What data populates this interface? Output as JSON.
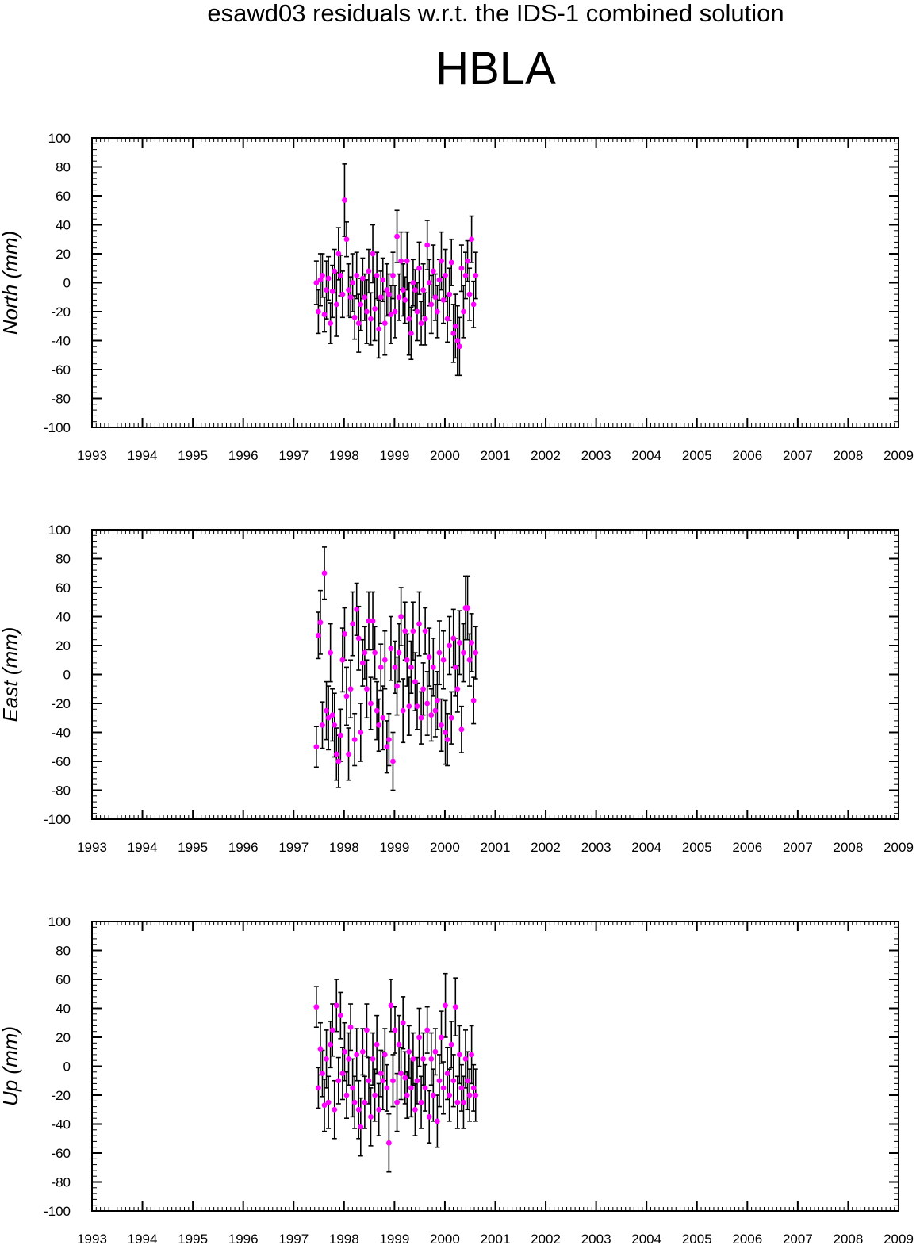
{
  "header": {
    "title": "esawd03 residuals w.r.t. the IDS-1 combined solution",
    "station": "HBLA"
  },
  "colors": {
    "marker": "#ff00ff",
    "errorbar": "#000000",
    "axis": "#000000"
  },
  "chart_data": [
    {
      "type": "scatter",
      "ylabel": "North (mm)",
      "xlim": [
        1993,
        2009
      ],
      "ylim": [
        -100,
        100
      ],
      "xticks": [
        "1993",
        "1994",
        "1995",
        "1996",
        "1997",
        "1998",
        "1999",
        "2000",
        "2001",
        "2002",
        "2003",
        "2004",
        "2005",
        "2006",
        "2007",
        "2008",
        "2009"
      ],
      "yticks": [
        "100",
        "80",
        "60",
        "40",
        "20",
        "0",
        "-20",
        "-40",
        "-60",
        "-80",
        "-100"
      ],
      "x": [
        1997.45,
        1997.49,
        1997.53,
        1997.57,
        1997.61,
        1997.65,
        1997.69,
        1997.73,
        1997.77,
        1997.81,
        1997.85,
        1997.89,
        1997.93,
        1997.97,
        1998.01,
        1998.05,
        1998.09,
        1998.13,
        1998.17,
        1998.21,
        1998.25,
        1998.29,
        1998.33,
        1998.37,
        1998.41,
        1998.45,
        1998.49,
        1998.53,
        1998.57,
        1998.61,
        1998.65,
        1998.69,
        1998.73,
        1998.77,
        1998.81,
        1998.85,
        1998.89,
        1998.93,
        1998.97,
        1999.01,
        1999.05,
        1999.09,
        1999.13,
        1999.17,
        1999.21,
        1999.25,
        1999.29,
        1999.33,
        1999.37,
        1999.41,
        1999.45,
        1999.49,
        1999.53,
        1999.57,
        1999.61,
        1999.65,
        1999.69,
        1999.73,
        1999.77,
        1999.81,
        1999.85,
        1999.89,
        1999.93,
        1999.97,
        2000.01,
        2000.05,
        2000.09,
        2000.13,
        2000.17,
        2000.21,
        2000.25,
        2000.29,
        2000.33,
        2000.37,
        2000.41,
        2000.45,
        2000.49,
        2000.53,
        2000.57,
        2000.61
      ],
      "y": [
        0,
        -20,
        2,
        5,
        -22,
        -5,
        3,
        -28,
        -6,
        8,
        -15,
        20,
        5,
        -8,
        57,
        30,
        -5,
        -10,
        0,
        -24,
        5,
        -28,
        -15,
        3,
        -10,
        -20,
        8,
        -25,
        20,
        -18,
        5,
        -32,
        -10,
        2,
        -28,
        -5,
        -8,
        -22,
        5,
        -20,
        32,
        -10,
        15,
        -5,
        -12,
        15,
        -25,
        -35,
        0,
        -5,
        -20,
        10,
        -28,
        -5,
        -25,
        26,
        0,
        -15,
        8,
        -10,
        -20,
        2,
        15,
        -12,
        5,
        -25,
        -8,
        14,
        -35,
        -30,
        -40,
        -44,
        10,
        -20,
        5,
        15,
        -8,
        30,
        -15,
        5
      ],
      "err": [
        15,
        15,
        18,
        15,
        12,
        20,
        15,
        14,
        18,
        15,
        22,
        18,
        14,
        16,
        25,
        12,
        18,
        14,
        20,
        15,
        16,
        20,
        18,
        14,
        16,
        22,
        15,
        18,
        20,
        22,
        16,
        20,
        18,
        15,
        22,
        18,
        14,
        20,
        16,
        18,
        18,
        16,
        20,
        18,
        16,
        20,
        25,
        18,
        16,
        14,
        20,
        18,
        15,
        18,
        18,
        17,
        16,
        20,
        18,
        16,
        18,
        14,
        20,
        16,
        18,
        16,
        18,
        16,
        20,
        22,
        24,
        20,
        16,
        18,
        16,
        14,
        18,
        16,
        16,
        16
      ]
    },
    {
      "type": "scatter",
      "ylabel": "East (mm)",
      "xlim": [
        1993,
        2009
      ],
      "ylim": [
        -100,
        100
      ],
      "xticks": [
        "1993",
        "1994",
        "1995",
        "1996",
        "1997",
        "1998",
        "1999",
        "2000",
        "2001",
        "2002",
        "2003",
        "2004",
        "2005",
        "2006",
        "2007",
        "2008",
        "2009"
      ],
      "yticks": [
        "100",
        "80",
        "60",
        "40",
        "20",
        "0",
        "-20",
        "-40",
        "-60",
        "-80",
        "-100"
      ],
      "x": [
        1997.45,
        1997.49,
        1997.53,
        1997.57,
        1997.61,
        1997.65,
        1997.69,
        1997.73,
        1997.77,
        1997.81,
        1997.85,
        1997.89,
        1997.93,
        1997.97,
        1998.01,
        1998.05,
        1998.09,
        1998.13,
        1998.17,
        1998.21,
        1998.25,
        1998.29,
        1998.33,
        1998.37,
        1998.41,
        1998.45,
        1998.49,
        1998.53,
        1998.57,
        1998.61,
        1998.65,
        1998.69,
        1998.73,
        1998.77,
        1998.81,
        1998.85,
        1998.89,
        1998.93,
        1998.97,
        1999.01,
        1999.05,
        1999.09,
        1999.13,
        1999.17,
        1999.21,
        1999.25,
        1999.29,
        1999.33,
        1999.37,
        1999.41,
        1999.45,
        1999.49,
        1999.53,
        1999.57,
        1999.61,
        1999.65,
        1999.69,
        1999.73,
        1999.77,
        1999.81,
        1999.85,
        1999.89,
        1999.93,
        1999.97,
        2000.01,
        2000.05,
        2000.09,
        2000.13,
        2000.17,
        2000.21,
        2000.25,
        2000.29,
        2000.33,
        2000.37,
        2000.41,
        2000.45,
        2000.49,
        2000.53,
        2000.57,
        2000.61
      ],
      "y": [
        -50,
        27,
        36,
        -35,
        70,
        -25,
        -30,
        15,
        -28,
        -35,
        -55,
        -60,
        -42,
        10,
        28,
        -15,
        -55,
        -10,
        35,
        -45,
        45,
        25,
        -40,
        8,
        15,
        -10,
        37,
        -20,
        37,
        15,
        -25,
        -35,
        5,
        -30,
        10,
        -50,
        -45,
        18,
        -60,
        5,
        -8,
        15,
        40,
        -25,
        30,
        10,
        -22,
        5,
        30,
        -5,
        -22,
        35,
        -30,
        -10,
        30,
        -20,
        12,
        -28,
        5,
        -25,
        -18,
        15,
        -35,
        10,
        -40,
        -45,
        20,
        -30,
        25,
        5,
        -10,
        22,
        -38,
        15,
        46,
        46,
        10,
        22,
        -18,
        15
      ],
      "err": [
        14,
        16,
        22,
        16,
        18,
        20,
        22,
        20,
        18,
        22,
        18,
        18,
        18,
        22,
        18,
        20,
        18,
        20,
        22,
        18,
        18,
        22,
        20,
        16,
        18,
        20,
        20,
        18,
        20,
        18,
        20,
        18,
        16,
        22,
        20,
        18,
        18,
        22,
        20,
        18,
        20,
        20,
        20,
        22,
        20,
        18,
        20,
        18,
        20,
        20,
        16,
        22,
        18,
        18,
        16,
        22,
        20,
        18,
        20,
        18,
        20,
        22,
        18,
        20,
        22,
        18,
        20,
        18,
        20,
        20,
        16,
        22,
        16,
        20,
        22,
        22,
        18,
        20,
        16,
        18
      ]
    },
    {
      "type": "scatter",
      "ylabel": "Up (mm)",
      "xlim": [
        1993,
        2009
      ],
      "ylim": [
        -100,
        100
      ],
      "xticks": [
        "1993",
        "1994",
        "1995",
        "1996",
        "1997",
        "1998",
        "1999",
        "2000",
        "2001",
        "2002",
        "2003",
        "2004",
        "2005",
        "2006",
        "2007",
        "2008",
        "2009"
      ],
      "yticks": [
        "100",
        "80",
        "60",
        "40",
        "20",
        "0",
        "-20",
        "-40",
        "-60",
        "-80",
        "-100"
      ],
      "x": [
        1997.45,
        1997.49,
        1997.53,
        1997.57,
        1997.61,
        1997.65,
        1997.69,
        1997.73,
        1997.77,
        1997.81,
        1997.85,
        1997.89,
        1997.93,
        1997.97,
        1998.01,
        1998.05,
        1998.09,
        1998.13,
        1998.17,
        1998.21,
        1998.25,
        1998.29,
        1998.33,
        1998.37,
        1998.41,
        1998.45,
        1998.49,
        1998.53,
        1998.57,
        1998.61,
        1998.65,
        1998.69,
        1998.73,
        1998.77,
        1998.81,
        1998.85,
        1998.89,
        1998.93,
        1998.97,
        1999.01,
        1999.05,
        1999.09,
        1999.13,
        1999.17,
        1999.21,
        1999.25,
        1999.29,
        1999.33,
        1999.37,
        1999.41,
        1999.45,
        1999.49,
        1999.53,
        1999.57,
        1999.61,
        1999.65,
        1999.69,
        1999.73,
        1999.77,
        1999.81,
        1999.85,
        1999.89,
        1999.93,
        1999.97,
        2000.01,
        2000.05,
        2000.09,
        2000.13,
        2000.17,
        2000.21,
        2000.25,
        2000.29,
        2000.33,
        2000.37,
        2000.41,
        2000.45,
        2000.49,
        2000.53,
        2000.57,
        2000.61
      ],
      "y": [
        41,
        -15,
        12,
        -5,
        -27,
        5,
        -25,
        15,
        25,
        -30,
        42,
        -10,
        35,
        -5,
        10,
        -20,
        5,
        27,
        -15,
        -25,
        8,
        -30,
        -42,
        10,
        -25,
        25,
        -10,
        -35,
        5,
        -20,
        15,
        -30,
        -5,
        -10,
        8,
        -15,
        -53,
        42,
        -10,
        25,
        -25,
        15,
        -5,
        30,
        -8,
        -20,
        10,
        -15,
        5,
        -30,
        -10,
        20,
        -25,
        5,
        -15,
        25,
        -35,
        5,
        -20,
        10,
        -38,
        -10,
        20,
        -15,
        42,
        -5,
        -20,
        15,
        -10,
        41,
        -25,
        8,
        -15,
        -25,
        5,
        -10,
        -20,
        8,
        -15,
        -20
      ],
      "err": [
        14,
        14,
        18,
        16,
        18,
        20,
        18,
        16,
        18,
        20,
        18,
        16,
        16,
        18,
        20,
        16,
        18,
        16,
        20,
        18,
        18,
        20,
        20,
        16,
        18,
        18,
        16,
        20,
        18,
        18,
        20,
        18,
        16,
        20,
        18,
        16,
        20,
        18,
        18,
        16,
        20,
        20,
        18,
        18,
        18,
        16,
        18,
        20,
        18,
        18,
        16,
        20,
        18,
        18,
        16,
        16,
        18,
        18,
        18,
        16,
        18,
        18,
        18,
        18,
        22,
        18,
        18,
        16,
        18,
        20,
        18,
        20,
        16,
        18,
        20,
        20,
        18,
        20,
        16,
        18
      ]
    }
  ]
}
